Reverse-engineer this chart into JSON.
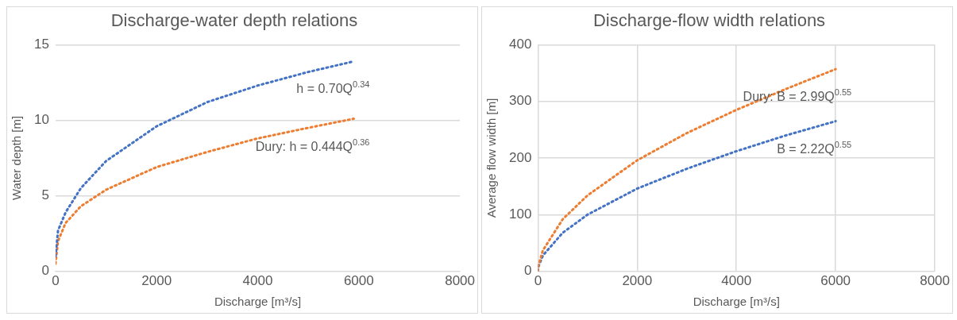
{
  "chart_data": [
    {
      "type": "line",
      "title": "Discharge-water depth relations",
      "xlabel": "Discharge [m³/s]",
      "ylabel": "Water depth [m]",
      "xlim": [
        0,
        8000
      ],
      "xticks": [
        0,
        2000,
        4000,
        6000,
        8000
      ],
      "ylim": [
        0,
        15
      ],
      "yticks": [
        0,
        5,
        10,
        15
      ],
      "grid": "y",
      "marker": "none",
      "line_style": "dotted",
      "series": [
        {
          "color": "#4472c4",
          "x": [
            0,
            50,
            200,
            500,
            1000,
            2000,
            3000,
            4000,
            5000,
            5900
          ],
          "values": [
            1.0,
            2.7,
            3.9,
            5.5,
            7.3,
            9.6,
            11.2,
            12.3,
            13.2,
            13.9
          ]
        },
        {
          "color": "#ed7d31",
          "x": [
            0,
            50,
            200,
            500,
            1000,
            2000,
            3000,
            4000,
            5000,
            5900
          ],
          "values": [
            0.5,
            2.0,
            3.2,
            4.3,
            5.4,
            6.9,
            7.9,
            8.8,
            9.5,
            10.1
          ]
        }
      ],
      "annotations": [
        "h = 0.70Q$^{0.34}$",
        "Dury: h = 0.444Q$^{0.36}$"
      ]
    },
    {
      "type": "line",
      "title": "Discharge-flow width relations",
      "xlabel": "Discharge [m³/s]",
      "ylabel": "Average flow width [m]",
      "xlim": [
        0,
        8000
      ],
      "xticks": [
        0,
        2000,
        4000,
        6000,
        8000
      ],
      "ylim": [
        0,
        400
      ],
      "yticks": [
        0,
        100,
        200,
        300,
        400
      ],
      "grid": true,
      "marker": "none",
      "line_style": "dotted",
      "series": [
        {
          "color": "#ed7d31",
          "x": [
            0,
            10,
            100,
            500,
            1000,
            2000,
            3000,
            4000,
            5000,
            6000
          ],
          "values": [
            0,
            10,
            37,
            92,
            134,
            196,
            244,
            285,
            322,
            357
          ]
        },
        {
          "color": "#4472c4",
          "x": [
            0,
            10,
            100,
            500,
            1000,
            2000,
            3000,
            4000,
            5000,
            6000
          ],
          "values": [
            0,
            8,
            28,
            68,
            100,
            146,
            181,
            212,
            240,
            265
          ]
        }
      ],
      "annotations": [
        "Dury: B = 2.99Q$^{0.55}$",
        "B = 2.22Q$^{0.55}$"
      ]
    }
  ]
}
